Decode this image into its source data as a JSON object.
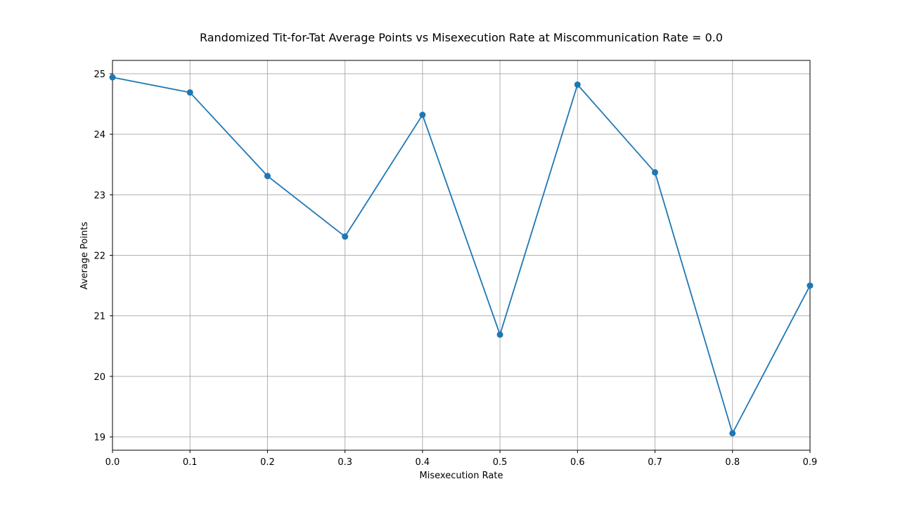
{
  "chart_data": {
    "type": "line",
    "title": "Randomized Tit-for-Tat Average Points vs Misexecution Rate at Miscommunication Rate = 0.0",
    "xlabel": "Misexecution Rate",
    "ylabel": "Average Points",
    "x": [
      0.0,
      0.1,
      0.2,
      0.3,
      0.4,
      0.5,
      0.6,
      0.7,
      0.8,
      0.9
    ],
    "series": [
      {
        "values": [
          24.94,
          24.69,
          23.31,
          22.31,
          24.32,
          20.69,
          24.82,
          23.37,
          19.06,
          21.5
        ],
        "color": "#1f77b4",
        "marker": "circle"
      }
    ],
    "xlim": [
      0.0,
      0.9
    ],
    "ylim": [
      18.78,
      25.22
    ],
    "xticks": [
      "0.0",
      "0.1",
      "0.2",
      "0.3",
      "0.4",
      "0.5",
      "0.6",
      "0.7",
      "0.8",
      "0.9"
    ],
    "yticks": [
      "19",
      "20",
      "21",
      "22",
      "23",
      "24",
      "25"
    ],
    "grid": true,
    "grid_color": "#b0b0b0",
    "line_color": "#1f77b4"
  }
}
